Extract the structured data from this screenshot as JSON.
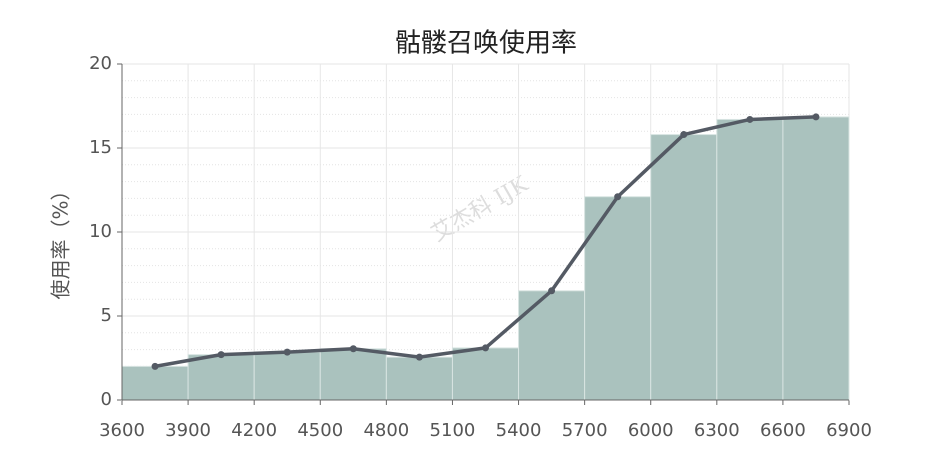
{
  "chart_data": {
    "type": "histogram",
    "title": "骷髅召唤使用率",
    "ylabel": "使用率（%）",
    "watermark": "艾杰科 IJK",
    "bins": [
      3600,
      3900,
      4200,
      4500,
      4800,
      5100,
      5400,
      5700,
      6000,
      6300,
      6600,
      6900
    ],
    "counts": [
      2.0,
      2.7,
      2.85,
      3.05,
      2.55,
      3.1,
      6.5,
      12.1,
      15.8,
      16.7,
      16.85
    ],
    "color": "#aac2be",
    "line_color": "#545a64",
    "xlim": [
      3600,
      6900
    ],
    "xticks": [
      3600,
      3900,
      4200,
      4500,
      4800,
      5100,
      5400,
      5700,
      6000,
      6300,
      6600,
      6900
    ],
    "ylim": [
      0,
      20
    ],
    "yticks": [
      0,
      5,
      10,
      15,
      20
    ],
    "grid": true
  }
}
